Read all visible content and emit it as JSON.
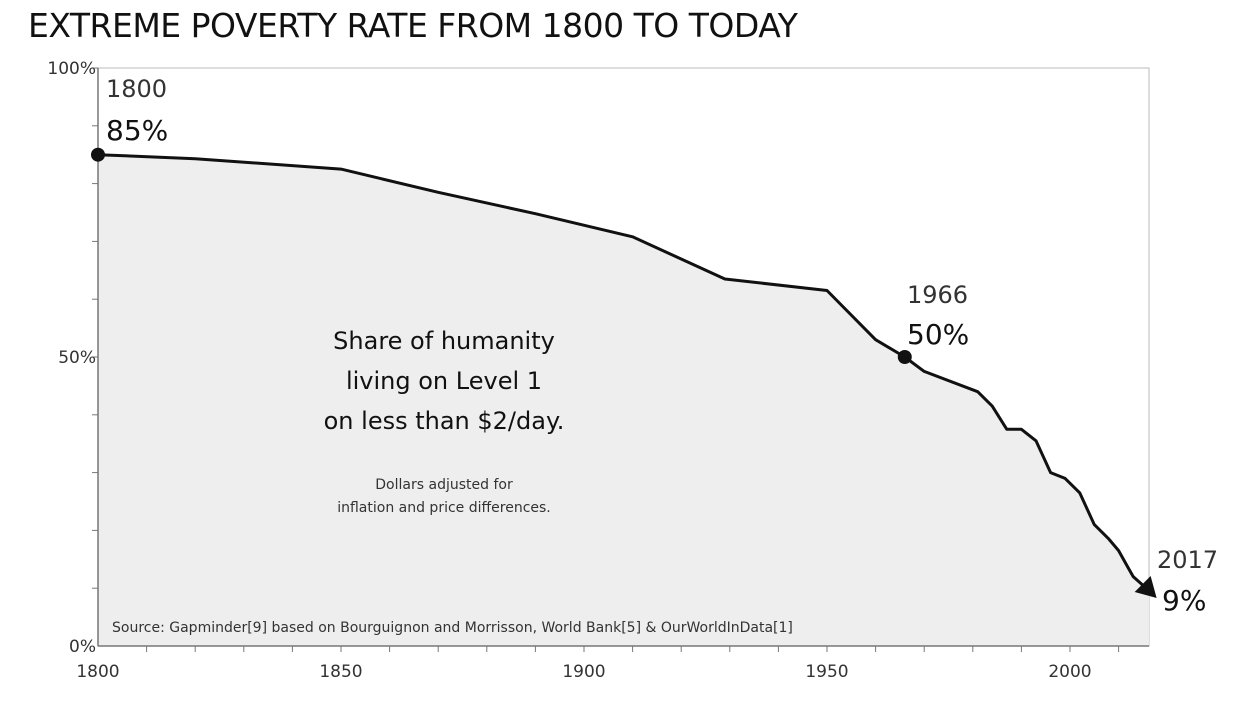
{
  "title": "EXTREME POVERTY RATE FROM 1800 TO TODAY",
  "chart_data": {
    "type": "area",
    "title": "EXTREME POVERTY RATE FROM 1800 TO TODAY",
    "xlabel": "",
    "ylabel": "",
    "xlim": [
      1800,
      2017
    ],
    "ylim": [
      0,
      100
    ],
    "grid": false,
    "x_ticks": [
      "1800",
      "1850",
      "1900",
      "1950",
      "2000"
    ],
    "y_ticks": [
      "0%",
      "50%",
      "100%"
    ],
    "series": [
      {
        "x": [
          1800,
          1820,
          1850,
          1870,
          1890,
          1910,
          1929,
          1950,
          1960,
          1966,
          1970,
          1981,
          1984,
          1987,
          1990,
          1993,
          1996,
          1999,
          2002,
          2005,
          2008,
          2010,
          2012,
          2013,
          2015,
          2017
        ],
        "values": [
          85,
          84.3,
          82.5,
          78.5,
          74.8,
          70.8,
          63.5,
          61.5,
          53,
          50,
          47.5,
          44,
          41.5,
          37.5,
          37.5,
          35.5,
          30,
          29,
          26.5,
          21,
          18.5,
          16.5,
          13.5,
          12,
          10.5,
          9
        ]
      }
    ],
    "annotations": [
      {
        "x": 1800,
        "y": 85,
        "year": "1800",
        "value": "85%"
      },
      {
        "x": 1966,
        "y": 50,
        "year": "1966",
        "value": "50%"
      },
      {
        "x": 2017,
        "y": 9,
        "year": "2017",
        "value": "9%"
      }
    ],
    "body_text": [
      "Share of humanity",
      "living on Level 1",
      "on less than $2/day."
    ],
    "note_text": [
      "Dollars adjusted for",
      "inflation and price differences."
    ],
    "source": "Source: Gapminder[9] based on Bourguignon and Morrisson, World Bank[5] & OurWorldInData[1]",
    "colors": {
      "fill": "#eeeeee",
      "line": "#111111",
      "axis": "#888888"
    }
  }
}
